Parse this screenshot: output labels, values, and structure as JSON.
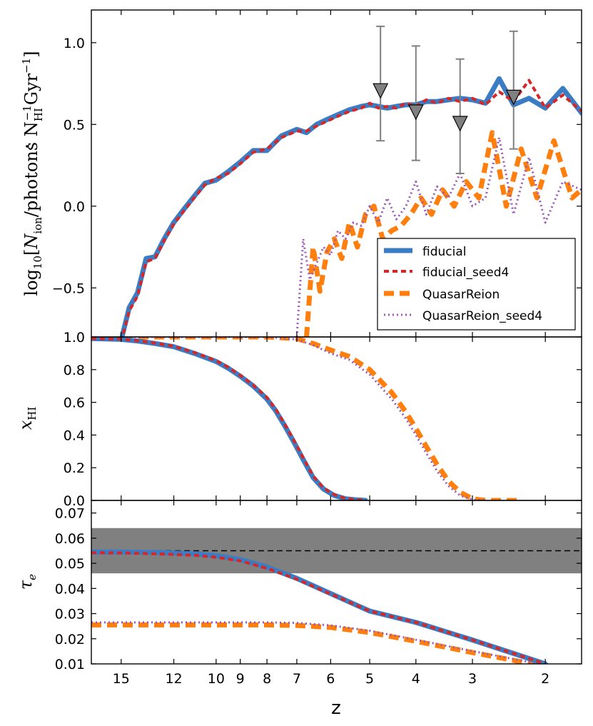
{
  "figure": {
    "xlabel": "z",
    "x_ticks": [
      15,
      12,
      10,
      9,
      8,
      7,
      6,
      5,
      4,
      3,
      2
    ],
    "x_tick_labels": [
      "15",
      "12",
      "10",
      "9",
      "8",
      "7",
      "6",
      "5",
      "4",
      "3",
      "2"
    ],
    "x_axis_transform": "log(1+z)",
    "x_range": [
      17.0,
      1.6
    ]
  },
  "legend": {
    "position": "lower-right of top panel",
    "entries": [
      {
        "label": "fiducial",
        "color": "#3b7dc4",
        "style": "solid"
      },
      {
        "label": "fiducial_seed4",
        "color": "#d62728",
        "style": "dashdot"
      },
      {
        "label": "QuasarReion",
        "color": "#ff7f0e",
        "style": "dashed"
      },
      {
        "label": "QuasarReion_seed4",
        "color": "#9b59b6",
        "style": "dotted"
      }
    ]
  },
  "chart_data": [
    {
      "type": "line",
      "panel": "top",
      "ylabel_parts": {
        "log": "log",
        "log_sub": "10",
        "open": "[",
        "N": "N",
        "ion_sub": "ion",
        "slash": "/photons N",
        "nhi_sub": "HI",
        "nhi_sup": "−1",
        "gyr": "Gyr",
        "gyr_sup": "−1",
        "close": "]"
      },
      "ylim": [
        -0.8,
        1.2
      ],
      "y_ticks": [
        -0.5,
        0.0,
        0.5,
        1.0
      ],
      "y_tick_labels": [
        "−0.5",
        "0.0",
        "0.5",
        "1.0"
      ],
      "series": [
        {
          "name": "fiducial",
          "z": [
            15.0,
            14.5,
            14.0,
            13.5,
            13.0,
            12.5,
            12.0,
            11.5,
            11.0,
            10.5,
            10.0,
            9.5,
            9.0,
            8.5,
            8.0,
            7.5,
            7.0,
            6.7,
            6.4,
            6.1,
            5.8,
            5.5,
            5.2,
            5.0,
            4.8,
            4.6,
            4.4,
            4.2,
            4.0,
            3.8,
            3.6,
            3.4,
            3.2,
            3.0,
            2.8,
            2.6,
            2.4,
            2.2,
            2.0,
            1.8,
            1.6
          ],
          "y": [
            -0.82,
            -0.62,
            -0.53,
            -0.32,
            -0.31,
            -0.2,
            -0.1,
            -0.02,
            0.06,
            0.14,
            0.16,
            0.21,
            0.27,
            0.34,
            0.34,
            0.43,
            0.47,
            0.45,
            0.5,
            0.53,
            0.56,
            0.59,
            0.61,
            0.62,
            0.61,
            0.6,
            0.61,
            0.62,
            0.62,
            0.64,
            0.64,
            0.65,
            0.66,
            0.65,
            0.63,
            0.78,
            0.62,
            0.66,
            0.6,
            0.72,
            0.57
          ]
        },
        {
          "name": "fiducial_seed4",
          "z": [
            15.0,
            14.5,
            14.0,
            13.5,
            13.0,
            12.5,
            12.0,
            11.5,
            11.0,
            10.5,
            10.0,
            9.5,
            9.0,
            8.5,
            8.0,
            7.5,
            7.0,
            6.7,
            6.4,
            6.1,
            5.8,
            5.5,
            5.2,
            5.0,
            4.8,
            4.6,
            4.4,
            4.2,
            4.0,
            3.8,
            3.6,
            3.4,
            3.2,
            3.0,
            2.8,
            2.6,
            2.4,
            2.2,
            2.0,
            1.8,
            1.6
          ],
          "y": [
            -0.83,
            -0.64,
            -0.55,
            -0.34,
            -0.32,
            -0.21,
            -0.11,
            -0.03,
            0.05,
            0.13,
            0.17,
            0.2,
            0.26,
            0.33,
            0.35,
            0.42,
            0.46,
            0.46,
            0.49,
            0.52,
            0.55,
            0.58,
            0.6,
            0.63,
            0.6,
            0.61,
            0.6,
            0.63,
            0.61,
            0.65,
            0.63,
            0.66,
            0.64,
            0.66,
            0.62,
            0.7,
            0.64,
            0.77,
            0.6,
            0.68,
            0.58
          ]
        },
        {
          "name": "QuasarReion",
          "z": [
            6.7,
            6.5,
            6.3,
            6.1,
            5.9,
            5.7,
            5.5,
            5.3,
            5.1,
            4.9,
            4.7,
            4.5,
            4.3,
            4.1,
            3.9,
            3.7,
            3.5,
            3.3,
            3.1,
            2.9,
            2.7,
            2.5,
            2.3,
            2.1,
            1.9,
            1.7,
            1.6
          ],
          "y": [
            -0.8,
            -0.25,
            -0.52,
            -0.28,
            -0.2,
            -0.32,
            -0.1,
            -0.25,
            -0.05,
            0.0,
            -0.2,
            -0.15,
            -0.12,
            -0.05,
            0.05,
            -0.05,
            0.1,
            0.0,
            0.15,
            0.05,
            0.45,
            0.0,
            0.35,
            0.05,
            0.4,
            0.05,
            0.1
          ]
        },
        {
          "name": "QuasarReion_seed4",
          "z": [
            7.0,
            6.8,
            6.6,
            6.4,
            6.2,
            6.0,
            5.8,
            5.6,
            5.4,
            5.2,
            5.0,
            4.8,
            4.6,
            4.4,
            4.2,
            4.0,
            3.8,
            3.6,
            3.4,
            3.2,
            3.0,
            2.8,
            2.6,
            2.4,
            2.2,
            2.0,
            1.8,
            1.6
          ],
          "y": [
            -0.8,
            -0.2,
            -0.45,
            -0.35,
            -0.25,
            -0.3,
            -0.15,
            -0.2,
            -0.1,
            -0.12,
            0.0,
            -0.1,
            0.05,
            -0.08,
            0.0,
            0.15,
            -0.05,
            0.12,
            0.05,
            0.2,
            0.0,
            0.05,
            0.42,
            -0.05,
            0.3,
            -0.1,
            0.15,
            0.1
          ]
        }
      ],
      "observations": [
        {
          "z": 4.75,
          "y": 0.71,
          "err_low": 0.4,
          "err_high": 1.1
        },
        {
          "z": 4.0,
          "y": 0.58,
          "err_low": 0.28,
          "err_high": 0.98
        },
        {
          "z": 3.2,
          "y": 0.51,
          "err_low": 0.2,
          "err_high": 0.9
        },
        {
          "z": 2.4,
          "y": 0.67,
          "err_low": 0.35,
          "err_high": 1.07
        }
      ]
    },
    {
      "type": "line",
      "panel": "middle",
      "ylabel_parts": {
        "x": "x",
        "sub": "HI"
      },
      "ylim": [
        0.0,
        1.0
      ],
      "y_ticks": [
        0.0,
        0.2,
        0.4,
        0.6,
        0.8,
        1.0
      ],
      "y_tick_labels": [
        "0.0",
        "0.2",
        "0.4",
        "0.6",
        "0.8",
        "1.0"
      ],
      "series": [
        {
          "name": "fiducial",
          "z": [
            17.0,
            15.0,
            14.0,
            13.0,
            12.0,
            11.0,
            10.0,
            9.5,
            9.0,
            8.5,
            8.0,
            7.7,
            7.4,
            7.1,
            6.8,
            6.5,
            6.2,
            5.9,
            5.6,
            5.3,
            5.1
          ],
          "y": [
            0.99,
            0.985,
            0.975,
            0.96,
            0.94,
            0.9,
            0.85,
            0.81,
            0.76,
            0.7,
            0.62,
            0.55,
            0.46,
            0.36,
            0.25,
            0.14,
            0.07,
            0.03,
            0.01,
            0.003,
            0.0
          ]
        },
        {
          "name": "fiducial_seed4",
          "z": [
            17.0,
            15.0,
            14.0,
            13.0,
            12.0,
            11.0,
            10.0,
            9.5,
            9.0,
            8.5,
            8.0,
            7.7,
            7.4,
            7.1,
            6.8,
            6.5,
            6.2,
            5.9,
            5.6,
            5.3,
            5.1
          ],
          "y": [
            0.99,
            0.987,
            0.977,
            0.962,
            0.943,
            0.905,
            0.855,
            0.815,
            0.765,
            0.705,
            0.63,
            0.56,
            0.47,
            0.37,
            0.26,
            0.15,
            0.075,
            0.035,
            0.012,
            0.004,
            0.0
          ]
        },
        {
          "name": "QuasarReion",
          "z": [
            17.0,
            8.0,
            7.0,
            6.5,
            6.0,
            5.5,
            5.0,
            4.5,
            4.2,
            4.0,
            3.8,
            3.6,
            3.4,
            3.2,
            3.0,
            2.8,
            2.6,
            2.3
          ],
          "y": [
            1.0,
            1.0,
            0.99,
            0.96,
            0.92,
            0.88,
            0.8,
            0.66,
            0.54,
            0.44,
            0.33,
            0.22,
            0.12,
            0.05,
            0.01,
            0.0,
            0.0,
            0.0
          ]
        },
        {
          "name": "QuasarReion_seed4",
          "z": [
            17.0,
            8.0,
            7.0,
            6.5,
            6.0,
            5.5,
            5.0,
            4.5,
            4.2,
            4.0,
            3.8,
            3.6,
            3.4,
            3.2,
            3.0,
            2.8
          ],
          "y": [
            1.0,
            1.0,
            0.985,
            0.95,
            0.9,
            0.86,
            0.77,
            0.62,
            0.5,
            0.4,
            0.29,
            0.18,
            0.09,
            0.03,
            0.005,
            0.0
          ]
        }
      ]
    },
    {
      "type": "line",
      "panel": "bottom",
      "ylabel_parts": {
        "tau": "τ",
        "sub": "e"
      },
      "ylim": [
        0.01,
        0.075
      ],
      "y_ticks": [
        0.01,
        0.02,
        0.03,
        0.04,
        0.05,
        0.06,
        0.07
      ],
      "y_tick_labels": [
        "0.01",
        "0.02",
        "0.03",
        "0.04",
        "0.05",
        "0.06",
        "0.07"
      ],
      "band": {
        "low": 0.046,
        "high": 0.064,
        "color": "#808080"
      },
      "reference_line": {
        "y": 0.055,
        "style": "dashed"
      },
      "series": [
        {
          "name": "fiducial",
          "z": [
            17.0,
            15.0,
            13.0,
            11.0,
            10.0,
            9.0,
            8.0,
            7.0,
            6.0,
            5.0,
            4.0,
            3.0,
            2.0
          ],
          "y": [
            0.0545,
            0.0545,
            0.0543,
            0.0538,
            0.053,
            0.0515,
            0.0485,
            0.044,
            0.038,
            0.031,
            0.0265,
            0.0195,
            0.01
          ]
        },
        {
          "name": "fiducial_seed4",
          "z": [
            17.0,
            15.0,
            13.0,
            11.0,
            10.0,
            9.0,
            8.0,
            7.0,
            6.0,
            5.0,
            4.0,
            3.0,
            2.0
          ],
          "y": [
            0.0542,
            0.0541,
            0.0538,
            0.0532,
            0.0524,
            0.051,
            0.048,
            0.0437,
            0.0378,
            0.031,
            0.0265,
            0.0195,
            0.01
          ]
        },
        {
          "name": "QuasarReion",
          "z": [
            17.0,
            10.0,
            8.0,
            7.0,
            6.0,
            5.0,
            4.0,
            3.0,
            2.0
          ],
          "y": [
            0.0255,
            0.0255,
            0.0255,
            0.0253,
            0.0245,
            0.0225,
            0.019,
            0.0145,
            0.009
          ]
        },
        {
          "name": "QuasarReion_seed4",
          "z": [
            17.0,
            10.0,
            8.0,
            7.0,
            6.0,
            5.0,
            4.0,
            3.0,
            2.0
          ],
          "y": [
            0.0265,
            0.0265,
            0.0265,
            0.0263,
            0.0253,
            0.0232,
            0.0196,
            0.0151,
            0.0095
          ]
        }
      ]
    }
  ]
}
